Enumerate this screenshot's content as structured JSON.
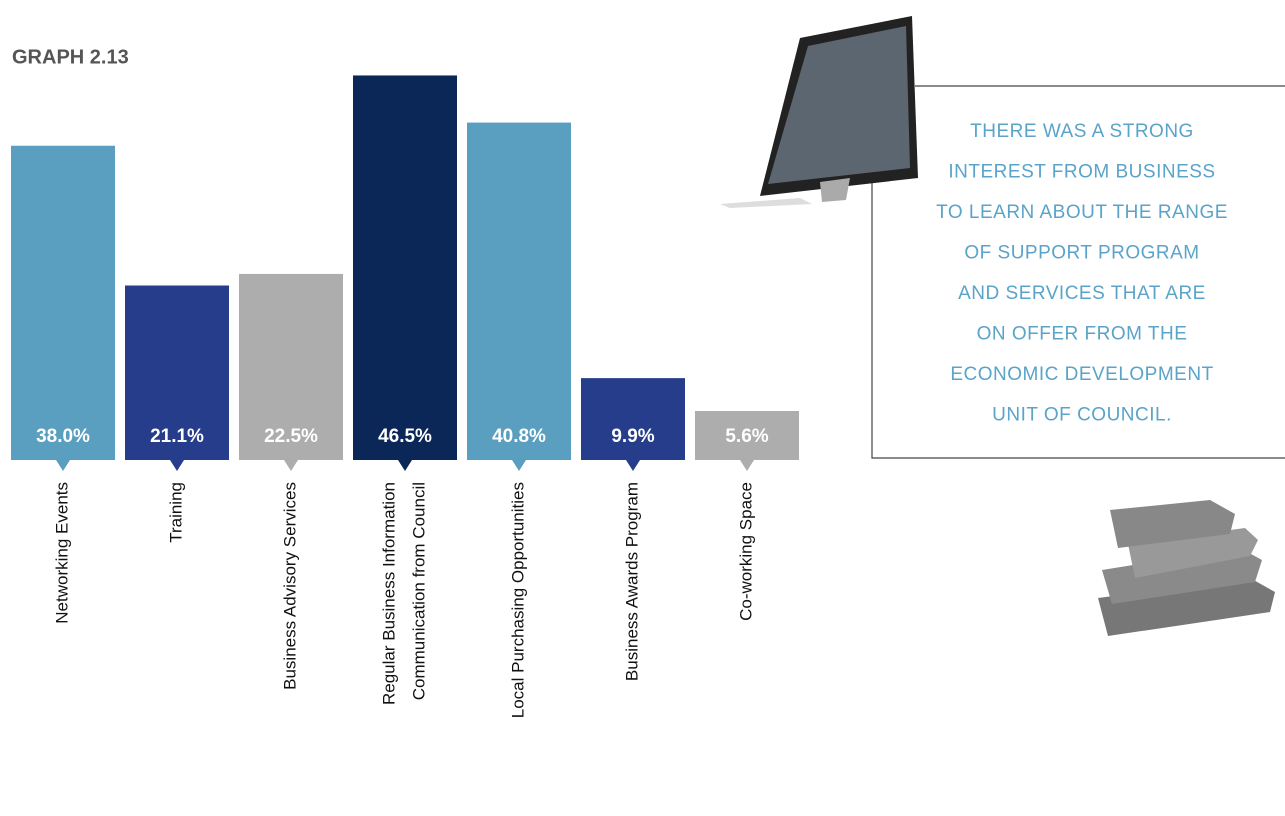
{
  "chart_data": {
    "type": "bar",
    "title": "GRAPH 2.13",
    "categories": [
      "Networking Events",
      "Training",
      "Business Advisory Services",
      [
        "Regular Business Information",
        "Communication from Council"
      ],
      "Local Purchasing Opportunities",
      "Business Awards Program",
      "Co-working Space"
    ],
    "values": [
      38.0,
      21.1,
      22.5,
      46.5,
      40.8,
      9.9,
      5.6
    ],
    "value_labels": [
      "38.0%",
      "21.1%",
      "22.5%",
      "46.5%",
      "40.8%",
      "9.9%",
      "5.6%"
    ],
    "colors": [
      "#5a9fbf",
      "#253d8a",
      "#adadad",
      "#0b2758",
      "#5a9fbf",
      "#253d8a",
      "#adadad"
    ]
  },
  "note": [
    "THERE WAS A STRONG",
    "INTEREST FROM BUSINESS",
    "TO LEARN ABOUT THE RANGE",
    "OF SUPPORT PROGRAM",
    "AND SERVICES THAT ARE",
    "ON OFFER FROM THE",
    "ECONOMIC  DEVELOPMENT",
    "UNIT OF COUNCIL."
  ]
}
